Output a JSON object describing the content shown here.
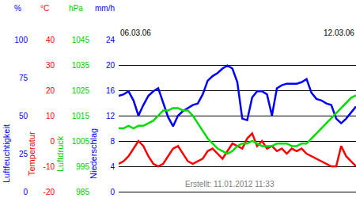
{
  "chart_data": {
    "type": "line",
    "grid": true,
    "footer": "Erstellt: 11.01.2012 11:33",
    "categories": [
      "06.03.06",
      null,
      null,
      null,
      null,
      null,
      null,
      null,
      null,
      null,
      null,
      null,
      null,
      null,
      null,
      null,
      null,
      null,
      null,
      null,
      null,
      null,
      null,
      null,
      null,
      null,
      null,
      null,
      null,
      null,
      null,
      null,
      null,
      null,
      null,
      null,
      null,
      null,
      null,
      null,
      null,
      null,
      null,
      null,
      null,
      null,
      null,
      null,
      "12.03.06"
    ],
    "y_axes": [
      {
        "axis": "y2",
        "title": "Luftfeuchtigkeit",
        "unit": "%",
        "color": "#0000ff",
        "lim": [
          0,
          100
        ],
        "ticks": [
          0,
          25,
          50,
          75,
          100
        ]
      },
      {
        "axis": "y3",
        "title": "Temperatur",
        "unit": "°C",
        "color": "#ff0000",
        "lim": [
          -20,
          40
        ],
        "ticks": [
          -20,
          -10,
          0,
          10,
          20,
          30,
          40
        ]
      },
      {
        "axis": "y4",
        "title": "Luftdruck",
        "unit": "hPa",
        "color": "#00cc00",
        "lim": [
          985,
          1045
        ],
        "ticks": [
          985,
          995,
          1005,
          1015,
          1025,
          1035,
          1045
        ]
      },
      {
        "axis": "y",
        "title": "Niederschlag",
        "unit": "mm/h",
        "color": "#0000ff",
        "lim": [
          0,
          24
        ],
        "ticks": [
          0,
          4,
          8,
          12,
          16,
          20,
          24
        ]
      }
    ],
    "series": [
      {
        "axis": "y2",
        "color": "#0000ff",
        "values": [
          63,
          64,
          66,
          60,
          50,
          57,
          63,
          66,
          68,
          58,
          49,
          43,
          50,
          53,
          55,
          57,
          58,
          64,
          73,
          76,
          78,
          81,
          83,
          81,
          72,
          48,
          47,
          62,
          66,
          66,
          64,
          50,
          68,
          70,
          71,
          71,
          71,
          72,
          74,
          65,
          61,
          60,
          58,
          57,
          48,
          45,
          48,
          52,
          56
        ]
      },
      {
        "axis": "y4",
        "color": "#00dd00",
        "values": [
          1010,
          1010,
          1011,
          1010,
          1011,
          1011,
          1012,
          1013,
          1015,
          1017,
          1017,
          1018,
          1018,
          1017,
          1017,
          1015,
          1012,
          1009,
          1006,
          1004,
          1002,
          1001,
          1000,
          1001,
          1003,
          1004,
          1004,
          1005,
          1004,
          1003,
          1003,
          1003,
          1004,
          1004,
          1004,
          1003,
          1003,
          1004,
          1004,
          1006,
          1008,
          1010,
          1012,
          1014,
          1016,
          1018,
          1020,
          1022,
          1023
        ]
      },
      {
        "axis": "y3",
        "color": "#ff0000",
        "values": [
          -9,
          -8,
          -6,
          -3,
          0,
          -2,
          -6,
          -9,
          -10,
          -9,
          -6,
          -3,
          -2,
          -5,
          -8,
          -9,
          -8,
          -7,
          -4,
          -3,
          -5,
          -7,
          -4,
          -1,
          -2,
          -3,
          1,
          3,
          -2,
          0,
          -3,
          -2,
          -4,
          -3,
          -5,
          -3,
          -4,
          -3,
          -5,
          -6,
          -7,
          -8,
          -9,
          -10,
          -10,
          -2,
          -6,
          -8,
          -10
        ]
      }
    ]
  }
}
